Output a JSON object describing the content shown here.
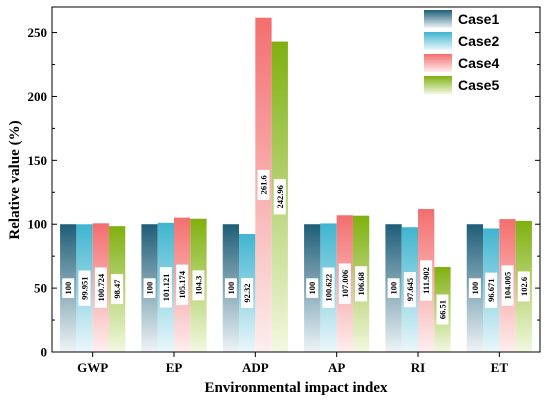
{
  "chart_data": {
    "type": "bar",
    "categories": [
      "GWP",
      "EP",
      "ADP",
      "AP",
      "RI",
      "ET"
    ],
    "series": [
      {
        "name": "Case1",
        "values": [
          100,
          100,
          100,
          100,
          100,
          100
        ],
        "labels": [
          "100",
          "100",
          "100",
          "100",
          "100",
          "100"
        ],
        "color_top": "#1f5e78",
        "color_bottom": "#eef4f7"
      },
      {
        "name": "Case2",
        "values": [
          99.951,
          101.121,
          92.32,
          100.622,
          97.645,
          96.671
        ],
        "labels": [
          "99.951",
          "101.121",
          "92.32",
          "100.622",
          "97.645",
          "96.671"
        ],
        "color_top": "#3fb4cf",
        "color_bottom": "#eaf7fa"
      },
      {
        "name": "Case4",
        "values": [
          100.724,
          105.174,
          261.6,
          107.006,
          111.902,
          104.005
        ],
        "labels": [
          "100.724",
          "105.174",
          "261.6",
          "107.006",
          "111.902",
          "104.005"
        ],
        "color_top": "#f46e6e",
        "color_bottom": "#fdeeee"
      },
      {
        "name": "Case5",
        "values": [
          98.47,
          104.3,
          242.96,
          106.68,
          66.51,
          102.6
        ],
        "labels": [
          "98.47",
          "104.3",
          "242.96",
          "106.68",
          "66.51",
          "102.6"
        ],
        "color_top": "#7fb00f",
        "color_bottom": "#f2f8e0"
      }
    ],
    "title": "",
    "xlabel": "Environmental impact index",
    "ylabel": "Relative value (%)",
    "ylim": [
      0,
      270
    ],
    "yticks": [
      "0",
      "50",
      "100",
      "150",
      "200",
      "250"
    ],
    "legend_position": "top-right",
    "grid": false
  }
}
